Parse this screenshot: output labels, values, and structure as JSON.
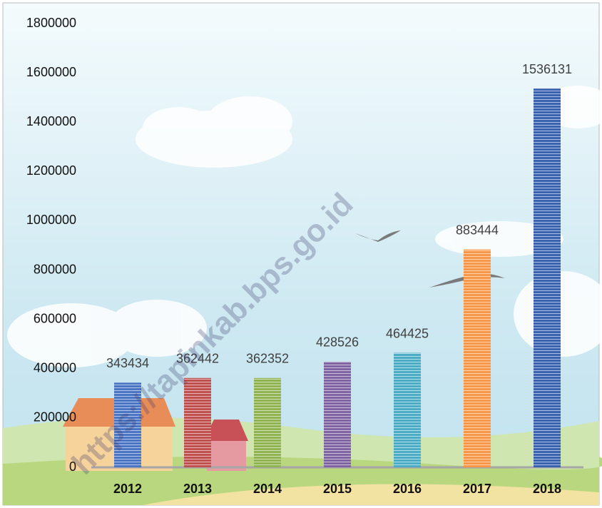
{
  "chart_data": {
    "type": "bar",
    "categories": [
      "2012",
      "2013",
      "2014",
      "2015",
      "2016",
      "2017",
      "2018"
    ],
    "values": [
      343434,
      362442,
      362352,
      428526,
      464425,
      883444,
      1536131
    ],
    "colors": [
      "#4a74c4",
      "#c0504d",
      "#8fb34f",
      "#8064a2",
      "#4bacc6",
      "#f79646",
      "#3a62b0"
    ],
    "ylim": [
      0,
      1800000
    ],
    "yticks": [
      0,
      200000,
      400000,
      600000,
      800000,
      1000000,
      1200000,
      1400000,
      1600000,
      1800000
    ],
    "grid": false,
    "watermark": "https://tapinkab.bps.go.id"
  }
}
